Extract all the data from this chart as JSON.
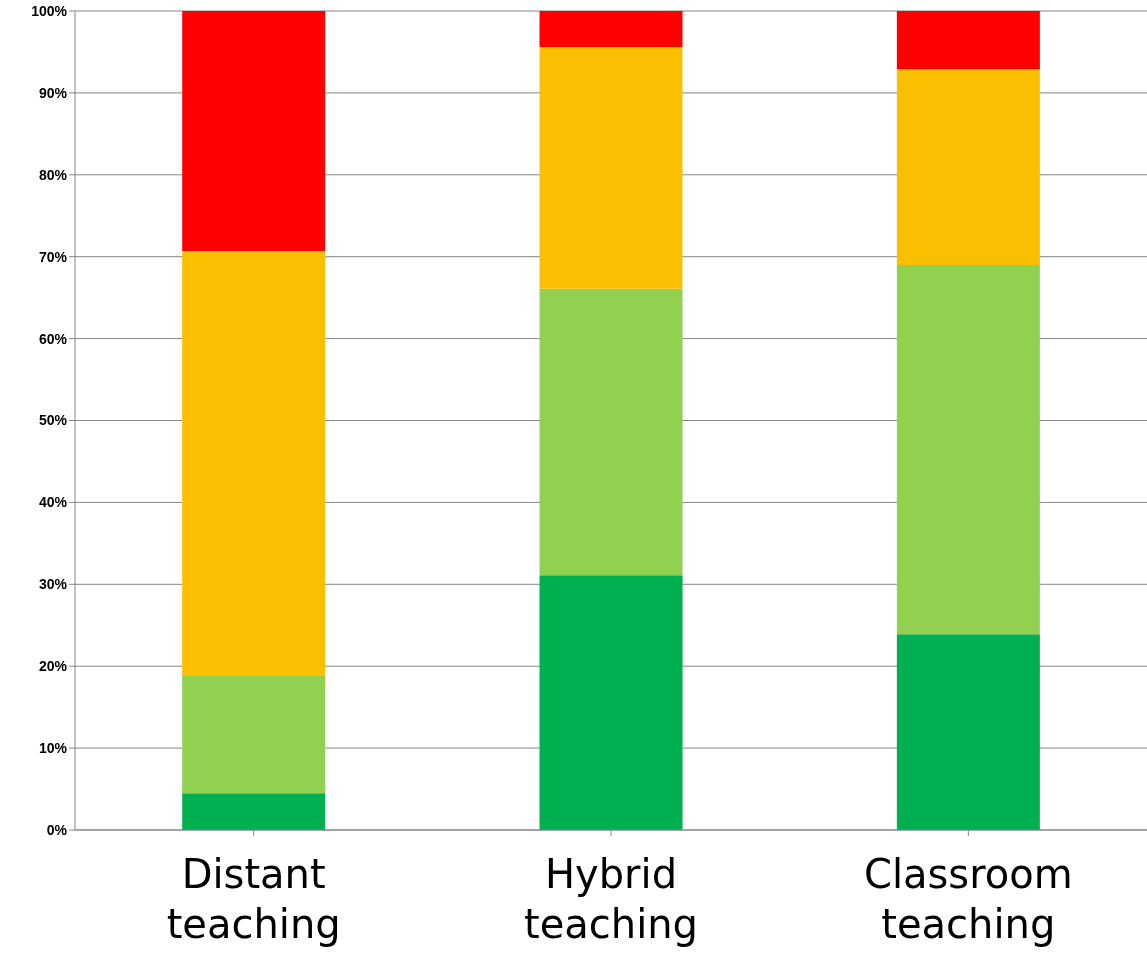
{
  "chart_data": {
    "type": "bar",
    "stacked": true,
    "categories": [
      "Distant teaching",
      "Hybrid teaching",
      "Classroom teaching"
    ],
    "series": [
      {
        "color": "#00b050",
        "values": [
          4.5,
          31.1,
          23.9
        ]
      },
      {
        "color": "#92d050",
        "values": [
          14.3,
          35.0,
          45.1
        ]
      },
      {
        "color": "#fac000",
        "values": [
          51.9,
          29.5,
          23.9
        ]
      },
      {
        "color": "#ff0000",
        "values": [
          29.3,
          4.4,
          7.1
        ]
      }
    ],
    "ylim": [
      0,
      100
    ],
    "yticks": [
      {
        "value": 0,
        "label": "0%"
      },
      {
        "value": 10,
        "label": "10%"
      },
      {
        "value": 20,
        "label": "20%"
      },
      {
        "value": 30,
        "label": "30%"
      },
      {
        "value": 40,
        "label": "40%"
      },
      {
        "value": 50,
        "label": "50%"
      },
      {
        "value": 60,
        "label": "60%"
      },
      {
        "value": 70,
        "label": "70%"
      },
      {
        "value": 80,
        "label": "80%"
      },
      {
        "value": 90,
        "label": "90%"
      },
      {
        "value": 100,
        "label": "100%"
      }
    ],
    "grid": "y"
  }
}
